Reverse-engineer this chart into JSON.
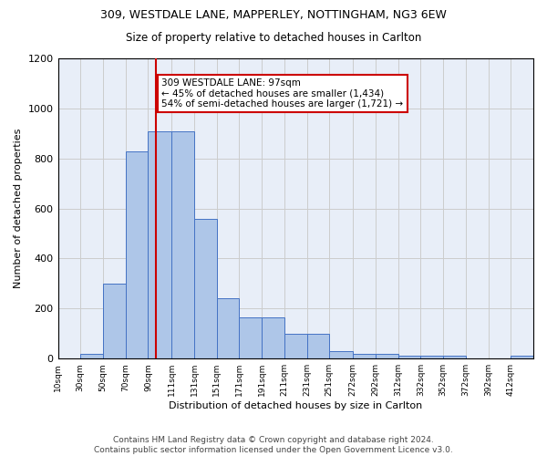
{
  "title1": "309, WESTDALE LANE, MAPPERLEY, NOTTINGHAM, NG3 6EW",
  "title2": "Size of property relative to detached houses in Carlton",
  "xlabel": "Distribution of detached houses by size in Carlton",
  "ylabel": "Number of detached properties",
  "annotation_line1": "309 WESTDALE LANE: 97sqm",
  "annotation_line2": "← 45% of detached houses are smaller (1,434)",
  "annotation_line3": "54% of semi-detached houses are larger (1,721) →",
  "footer1": "Contains HM Land Registry data © Crown copyright and database right 2024.",
  "footer2": "Contains public sector information licensed under the Open Government Licence v3.0.",
  "bar_left_edges": [
    10,
    30,
    50,
    70,
    90,
    111,
    131,
    151,
    171,
    191,
    211,
    231,
    251,
    272,
    292,
    312,
    332,
    352,
    372,
    392,
    412
  ],
  "bar_heights": [
    0,
    20,
    300,
    830,
    910,
    910,
    560,
    240,
    165,
    165,
    100,
    100,
    30,
    20,
    20,
    10,
    10,
    10,
    0,
    0,
    10
  ],
  "bar_widths": [
    20,
    20,
    20,
    20,
    21,
    20,
    20,
    20,
    20,
    20,
    20,
    20,
    21,
    20,
    20,
    20,
    20,
    20,
    20,
    20,
    20
  ],
  "bar_color": "#aec6e8",
  "bar_edge_color": "#4472c4",
  "property_size": 97,
  "red_line_color": "#cc0000",
  "annotation_box_color": "#cc0000",
  "ylim": [
    0,
    1200
  ],
  "yticks": [
    0,
    200,
    400,
    600,
    800,
    1000,
    1200
  ],
  "tick_labels": [
    "10sqm",
    "30sqm",
    "50sqm",
    "70sqm",
    "90sqm",
    "111sqm",
    "131sqm",
    "151sqm",
    "171sqm",
    "191sqm",
    "211sqm",
    "231sqm",
    "251sqm",
    "272sqm",
    "292sqm",
    "312sqm",
    "332sqm",
    "352sqm",
    "372sqm",
    "392sqm",
    "412sqm"
  ],
  "grid_color": "#cccccc",
  "bg_color": "#e8eef8",
  "title1_fontsize": 9,
  "title2_fontsize": 8.5,
  "axis_label_fontsize": 8,
  "tick_fontsize": 6.5,
  "annotation_fontsize": 7.5,
  "footer_fontsize": 6.5,
  "ylabel_fontsize": 8
}
